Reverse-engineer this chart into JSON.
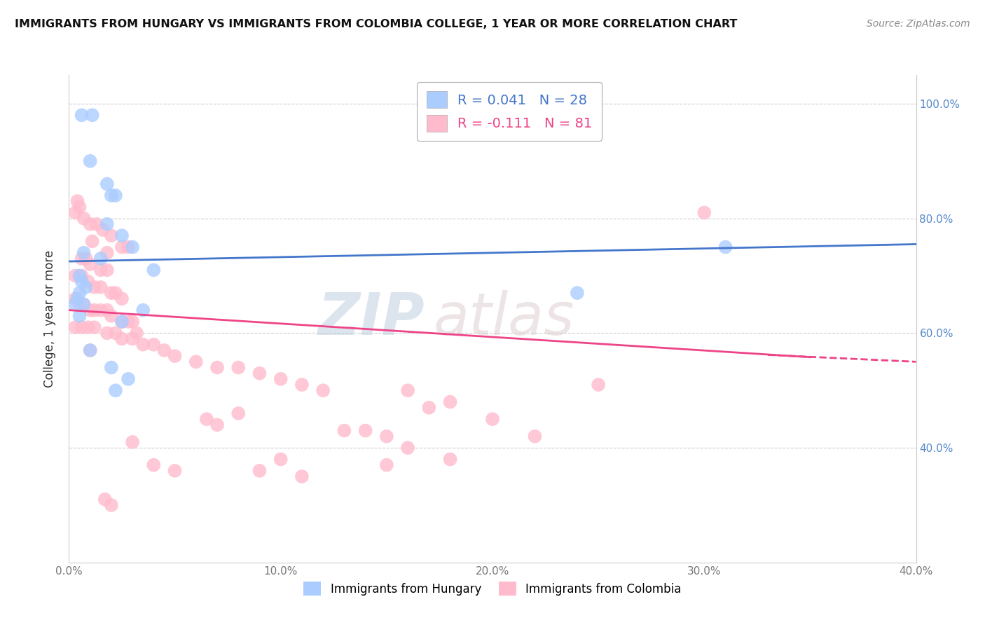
{
  "title": "IMMIGRANTS FROM HUNGARY VS IMMIGRANTS FROM COLOMBIA COLLEGE, 1 YEAR OR MORE CORRELATION CHART",
  "source": "Source: ZipAtlas.com",
  "ylabel": "College, 1 year or more",
  "xlim": [
    0.0,
    0.4
  ],
  "ylim": [
    0.2,
    1.05
  ],
  "hungary_R": 0.041,
  "hungary_N": 28,
  "colombia_R": -0.111,
  "colombia_N": 81,
  "hungary_color": "#aaccff",
  "colombia_color": "#ffbbcc",
  "hungary_line_color": "#4477cc",
  "colombia_line_color": "#ee4488",
  "background_color": "#ffffff",
  "grid_color": "#cccccc",
  "watermark_zip": "ZIP",
  "watermark_atlas": "atlas",
  "hungary_points": [
    [
      0.006,
      0.98
    ],
    [
      0.011,
      0.98
    ],
    [
      0.01,
      0.9
    ],
    [
      0.018,
      0.86
    ],
    [
      0.02,
      0.84
    ],
    [
      0.022,
      0.84
    ],
    [
      0.018,
      0.79
    ],
    [
      0.025,
      0.77
    ],
    [
      0.03,
      0.75
    ],
    [
      0.007,
      0.74
    ],
    [
      0.015,
      0.73
    ],
    [
      0.04,
      0.71
    ],
    [
      0.005,
      0.7
    ],
    [
      0.006,
      0.69
    ],
    [
      0.008,
      0.68
    ],
    [
      0.005,
      0.67
    ],
    [
      0.004,
      0.66
    ],
    [
      0.003,
      0.65
    ],
    [
      0.007,
      0.65
    ],
    [
      0.035,
      0.64
    ],
    [
      0.005,
      0.63
    ],
    [
      0.025,
      0.62
    ],
    [
      0.01,
      0.57
    ],
    [
      0.02,
      0.54
    ],
    [
      0.028,
      0.52
    ],
    [
      0.022,
      0.5
    ],
    [
      0.24,
      0.67
    ],
    [
      0.31,
      0.75
    ]
  ],
  "colombia_points": [
    [
      0.004,
      0.83
    ],
    [
      0.005,
      0.82
    ],
    [
      0.003,
      0.81
    ],
    [
      0.007,
      0.8
    ],
    [
      0.01,
      0.79
    ],
    [
      0.013,
      0.79
    ],
    [
      0.016,
      0.78
    ],
    [
      0.02,
      0.77
    ],
    [
      0.011,
      0.76
    ],
    [
      0.025,
      0.75
    ],
    [
      0.028,
      0.75
    ],
    [
      0.018,
      0.74
    ],
    [
      0.006,
      0.73
    ],
    [
      0.008,
      0.73
    ],
    [
      0.01,
      0.72
    ],
    [
      0.015,
      0.71
    ],
    [
      0.018,
      0.71
    ],
    [
      0.003,
      0.7
    ],
    [
      0.006,
      0.7
    ],
    [
      0.009,
      0.69
    ],
    [
      0.012,
      0.68
    ],
    [
      0.015,
      0.68
    ],
    [
      0.02,
      0.67
    ],
    [
      0.022,
      0.67
    ],
    [
      0.025,
      0.66
    ],
    [
      0.003,
      0.66
    ],
    [
      0.005,
      0.65
    ],
    [
      0.007,
      0.65
    ],
    [
      0.01,
      0.64
    ],
    [
      0.012,
      0.64
    ],
    [
      0.015,
      0.64
    ],
    [
      0.018,
      0.64
    ],
    [
      0.02,
      0.63
    ],
    [
      0.025,
      0.62
    ],
    [
      0.028,
      0.62
    ],
    [
      0.03,
      0.62
    ],
    [
      0.003,
      0.61
    ],
    [
      0.006,
      0.61
    ],
    [
      0.009,
      0.61
    ],
    [
      0.012,
      0.61
    ],
    [
      0.032,
      0.6
    ],
    [
      0.018,
      0.6
    ],
    [
      0.022,
      0.6
    ],
    [
      0.025,
      0.59
    ],
    [
      0.03,
      0.59
    ],
    [
      0.035,
      0.58
    ],
    [
      0.04,
      0.58
    ],
    [
      0.045,
      0.57
    ],
    [
      0.01,
      0.57
    ],
    [
      0.05,
      0.56
    ],
    [
      0.06,
      0.55
    ],
    [
      0.07,
      0.54
    ],
    [
      0.08,
      0.54
    ],
    [
      0.09,
      0.53
    ],
    [
      0.1,
      0.52
    ],
    [
      0.11,
      0.51
    ],
    [
      0.12,
      0.5
    ],
    [
      0.08,
      0.46
    ],
    [
      0.065,
      0.45
    ],
    [
      0.07,
      0.44
    ],
    [
      0.03,
      0.41
    ],
    [
      0.04,
      0.37
    ],
    [
      0.05,
      0.36
    ],
    [
      0.017,
      0.31
    ],
    [
      0.16,
      0.5
    ],
    [
      0.18,
      0.48
    ],
    [
      0.2,
      0.45
    ],
    [
      0.13,
      0.43
    ],
    [
      0.14,
      0.43
    ],
    [
      0.15,
      0.42
    ],
    [
      0.22,
      0.42
    ],
    [
      0.15,
      0.37
    ],
    [
      0.09,
      0.36
    ],
    [
      0.11,
      0.35
    ],
    [
      0.1,
      0.38
    ],
    [
      0.16,
      0.4
    ],
    [
      0.17,
      0.47
    ],
    [
      0.18,
      0.38
    ],
    [
      0.3,
      0.81
    ],
    [
      0.25,
      0.51
    ],
    [
      0.02,
      0.3
    ]
  ],
  "ytick_values": [
    0.4,
    0.6,
    0.8,
    1.0
  ],
  "ytick_labels": [
    "40.0%",
    "60.0%",
    "80.0%",
    "100.0%"
  ],
  "right_ytick_values": [
    0.4,
    0.6,
    0.8,
    1.0
  ],
  "right_ytick_labels": [
    "40.0%",
    "60.0%",
    "80.0%",
    "100.0%"
  ],
  "xtick_values": [
    0.0,
    0.1,
    0.2,
    0.3,
    0.4
  ],
  "xtick_labels": [
    "0.0%",
    "10.0%",
    "20.0%",
    "30.0%",
    "40.0%"
  ]
}
